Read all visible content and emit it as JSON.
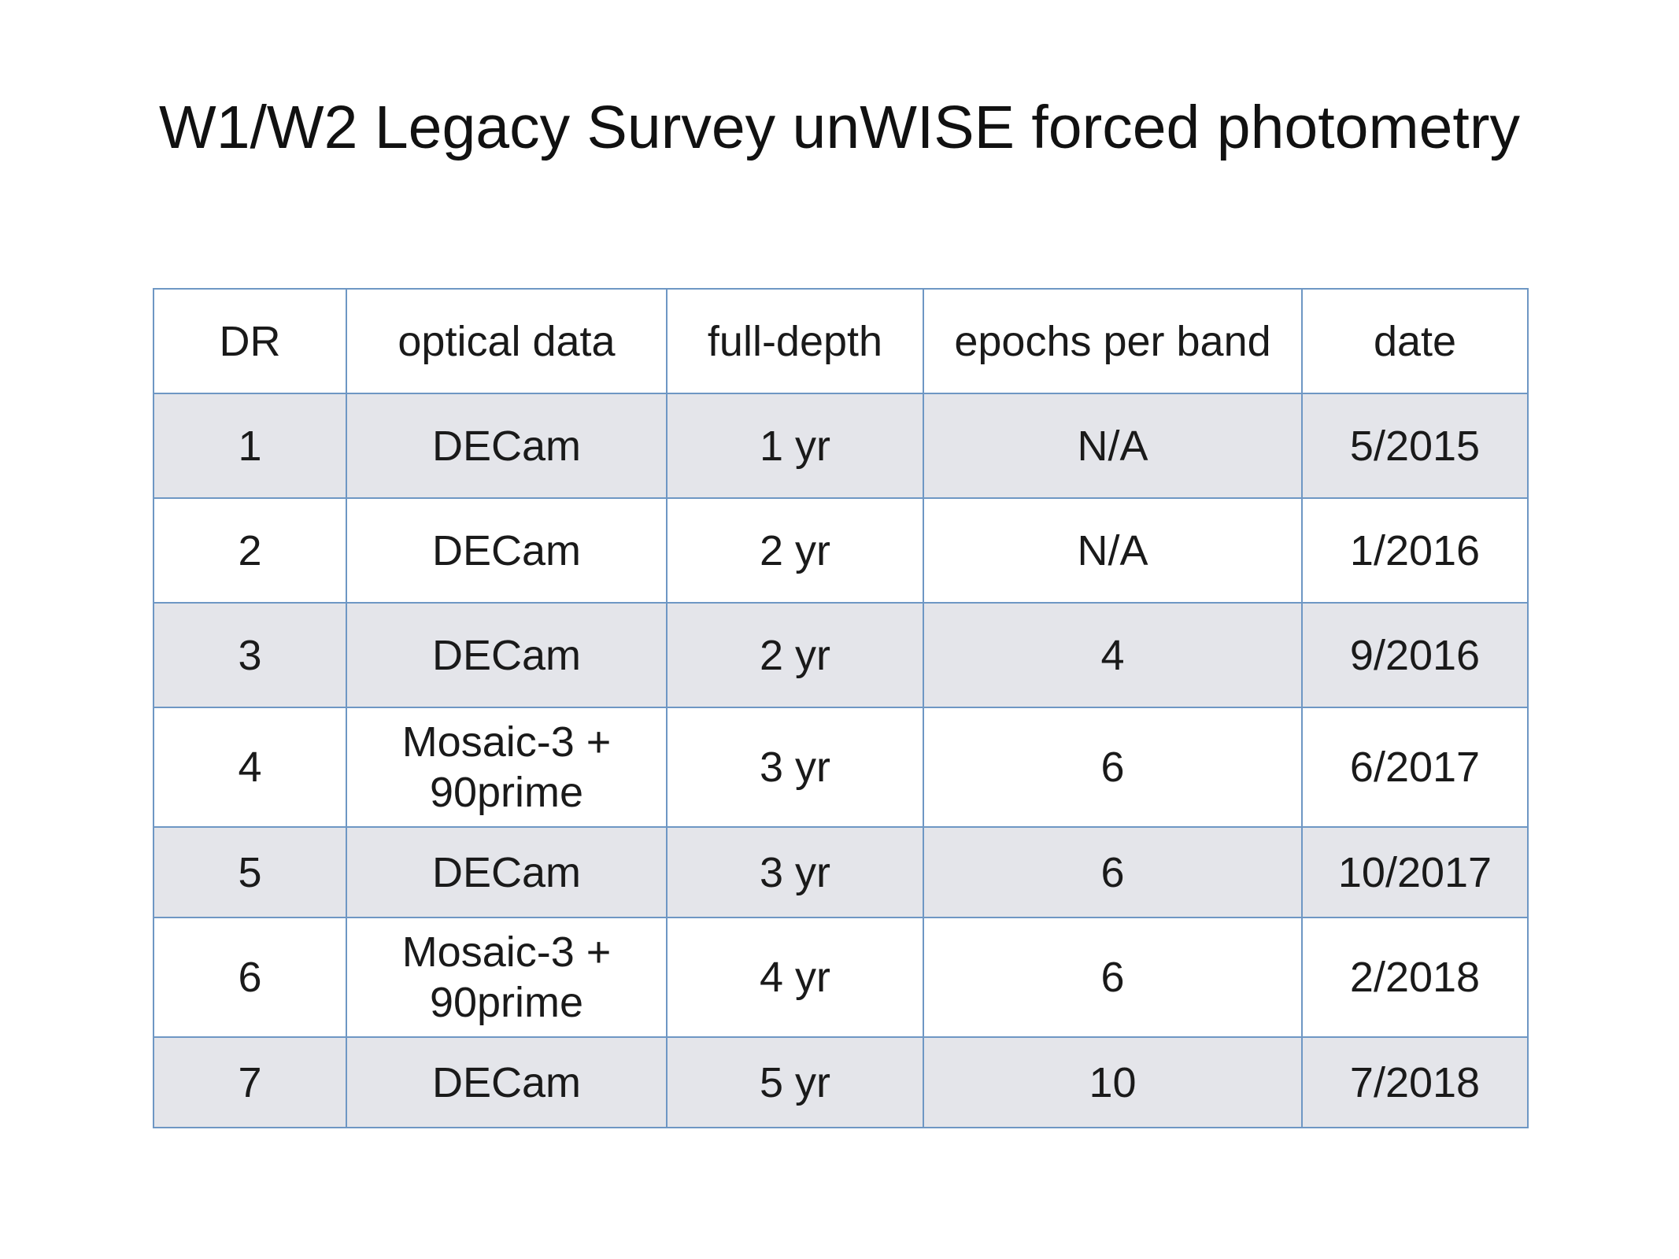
{
  "title": "W1/W2 Legacy Survey unWISE forced photometry",
  "table": {
    "headers": [
      "DR",
      "optical data",
      "full-depth",
      "epochs per band",
      "date"
    ],
    "rows": [
      [
        "1",
        "DECam",
        "1 yr",
        "N/A",
        "5/2015"
      ],
      [
        "2",
        "DECam",
        "2 yr",
        "N/A",
        "1/2016"
      ],
      [
        "3",
        "DECam",
        "2 yr",
        "4",
        "9/2016"
      ],
      [
        "4",
        "Mosaic-3 + 90prime",
        "3 yr",
        "6",
        "6/2017"
      ],
      [
        "5",
        "DECam",
        "3 yr",
        "6",
        "10/2017"
      ],
      [
        "6",
        "Mosaic-3 + 90prime",
        "4 yr",
        "6",
        "2/2018"
      ],
      [
        "7",
        "DECam",
        "5 yr",
        "10",
        "7/2018"
      ]
    ]
  },
  "colors": {
    "border": "#6e97c4",
    "stripe": "#e4e5ea",
    "background": "#ffffff"
  }
}
